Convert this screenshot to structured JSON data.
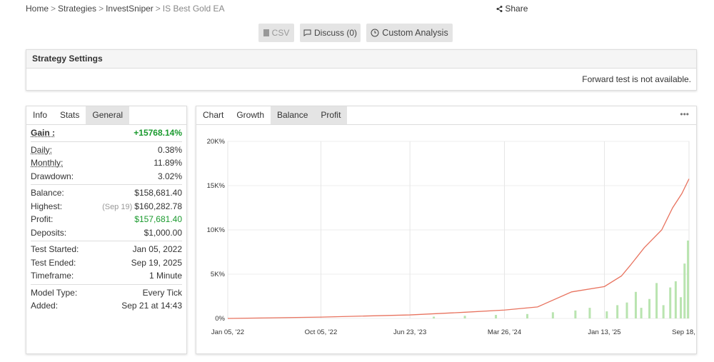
{
  "breadcrumb": [
    "Home",
    "Strategies",
    "InvestSniper",
    "IS Best Gold EA"
  ],
  "breadcrumb_separator": ">",
  "share": "Share",
  "buttons": [
    "CSV",
    "Discuss (0)",
    "Custom Analysis"
  ],
  "settings": {
    "title": "Strategy Settings",
    "message": "Forward test is not available."
  },
  "stats_tabs": [
    "Info",
    "Stats",
    "General"
  ],
  "stats": [
    [
      {
        "label": "Gain :",
        "value": "+15768.14%",
        "color": "#1a9a2e",
        "bold": true,
        "underline": true
      }
    ],
    [
      {
        "label": "Daily:",
        "value": "0.38%",
        "underline": true
      },
      {
        "label": "Monthly:",
        "value": "11.89%",
        "underline": true
      },
      {
        "label": "Drawdown:",
        "value": "3.02%"
      }
    ],
    [
      {
        "label": "Balance:",
        "value": "$158,681.40"
      },
      {
        "label": "Highest:",
        "note": "(Sep 19)",
        "value": "$160,282.78"
      },
      {
        "label": "Profit:",
        "value": "$157,681.40",
        "color": "#1a9a2e"
      },
      {
        "label": "Deposits:",
        "value": "$1,000.00"
      }
    ],
    [
      {
        "label": "Test Started:",
        "value": "Jan 05, 2022"
      },
      {
        "label": "Test Ended:",
        "value": "Sep 19, 2025"
      },
      {
        "label": "Timeframe:",
        "value": "1 Minute"
      }
    ],
    [
      {
        "label": "Model Type:",
        "value": "Every Tick"
      },
      {
        "label": "Added:",
        "value": "Sep 21 at 14:43"
      }
    ]
  ],
  "chart_tabs": [
    "Chart",
    "Growth",
    "Balance",
    "Profit"
  ],
  "chart_menu": "•••",
  "chart_data": {
    "type": "line",
    "x": [
      "2022-01-05",
      "2022-10-05",
      "2023-06-23",
      "2023-12-01",
      "2024-03-26",
      "2024-07-01",
      "2024-10-09",
      "2025-01-13",
      "2025-03-04",
      "2025-03-30",
      "2025-05-10",
      "2025-06-30",
      "2025-08-01",
      "2025-08-28",
      "2025-09-18"
    ],
    "series": [
      {
        "color": "#e8735f",
        "values": [
          0,
          150,
          400,
          700,
          950,
          1300,
          3000,
          3600,
          4800,
          6000,
          8000,
          10000,
          12500,
          14100,
          15768
        ]
      }
    ],
    "bars": {
      "color": "#b9e4b0",
      "x": [
        "2023-09-01",
        "2023-12-01",
        "2024-03-01",
        "2024-06-01",
        "2024-08-15",
        "2024-10-20",
        "2024-12-01",
        "2025-01-20",
        "2025-02-20",
        "2025-03-20",
        "2025-04-15",
        "2025-05-01",
        "2025-05-25",
        "2025-06-15",
        "2025-07-05",
        "2025-07-25",
        "2025-08-10",
        "2025-08-25",
        "2025-09-05",
        "2025-09-15"
      ],
      "values": [
        200,
        300,
        400,
        500,
        700,
        900,
        1200,
        800,
        1500,
        1800,
        3000,
        1200,
        2200,
        4000,
        1500,
        3500,
        4200,
        2400,
        6200,
        8800
      ]
    },
    "xlim": [
      "2022-01-05",
      "2025-09-18"
    ],
    "xticks": [
      {
        "value": "2022-01-05",
        "label": "Jan 05, '22"
      },
      {
        "value": "2022-10-05",
        "label": "Oct 05, '22"
      },
      {
        "value": "2023-06-23",
        "label": "Jun 23, '23"
      },
      {
        "value": "2024-03-26",
        "label": "Mar 26, '24"
      },
      {
        "value": "2025-01-13",
        "label": "Jan 13, '25"
      },
      {
        "value": "2025-09-18",
        "label": "Sep 18, '25"
      }
    ],
    "ylim": [
      0,
      20000
    ],
    "yticks": [
      {
        "value": 0,
        "label": "0%"
      },
      {
        "value": 5000,
        "label": "5K%"
      },
      {
        "value": 10000,
        "label": "10K%"
      },
      {
        "value": 15000,
        "label": "15K%"
      },
      {
        "value": 20000,
        "label": "20K%"
      }
    ],
    "grid": true
  }
}
